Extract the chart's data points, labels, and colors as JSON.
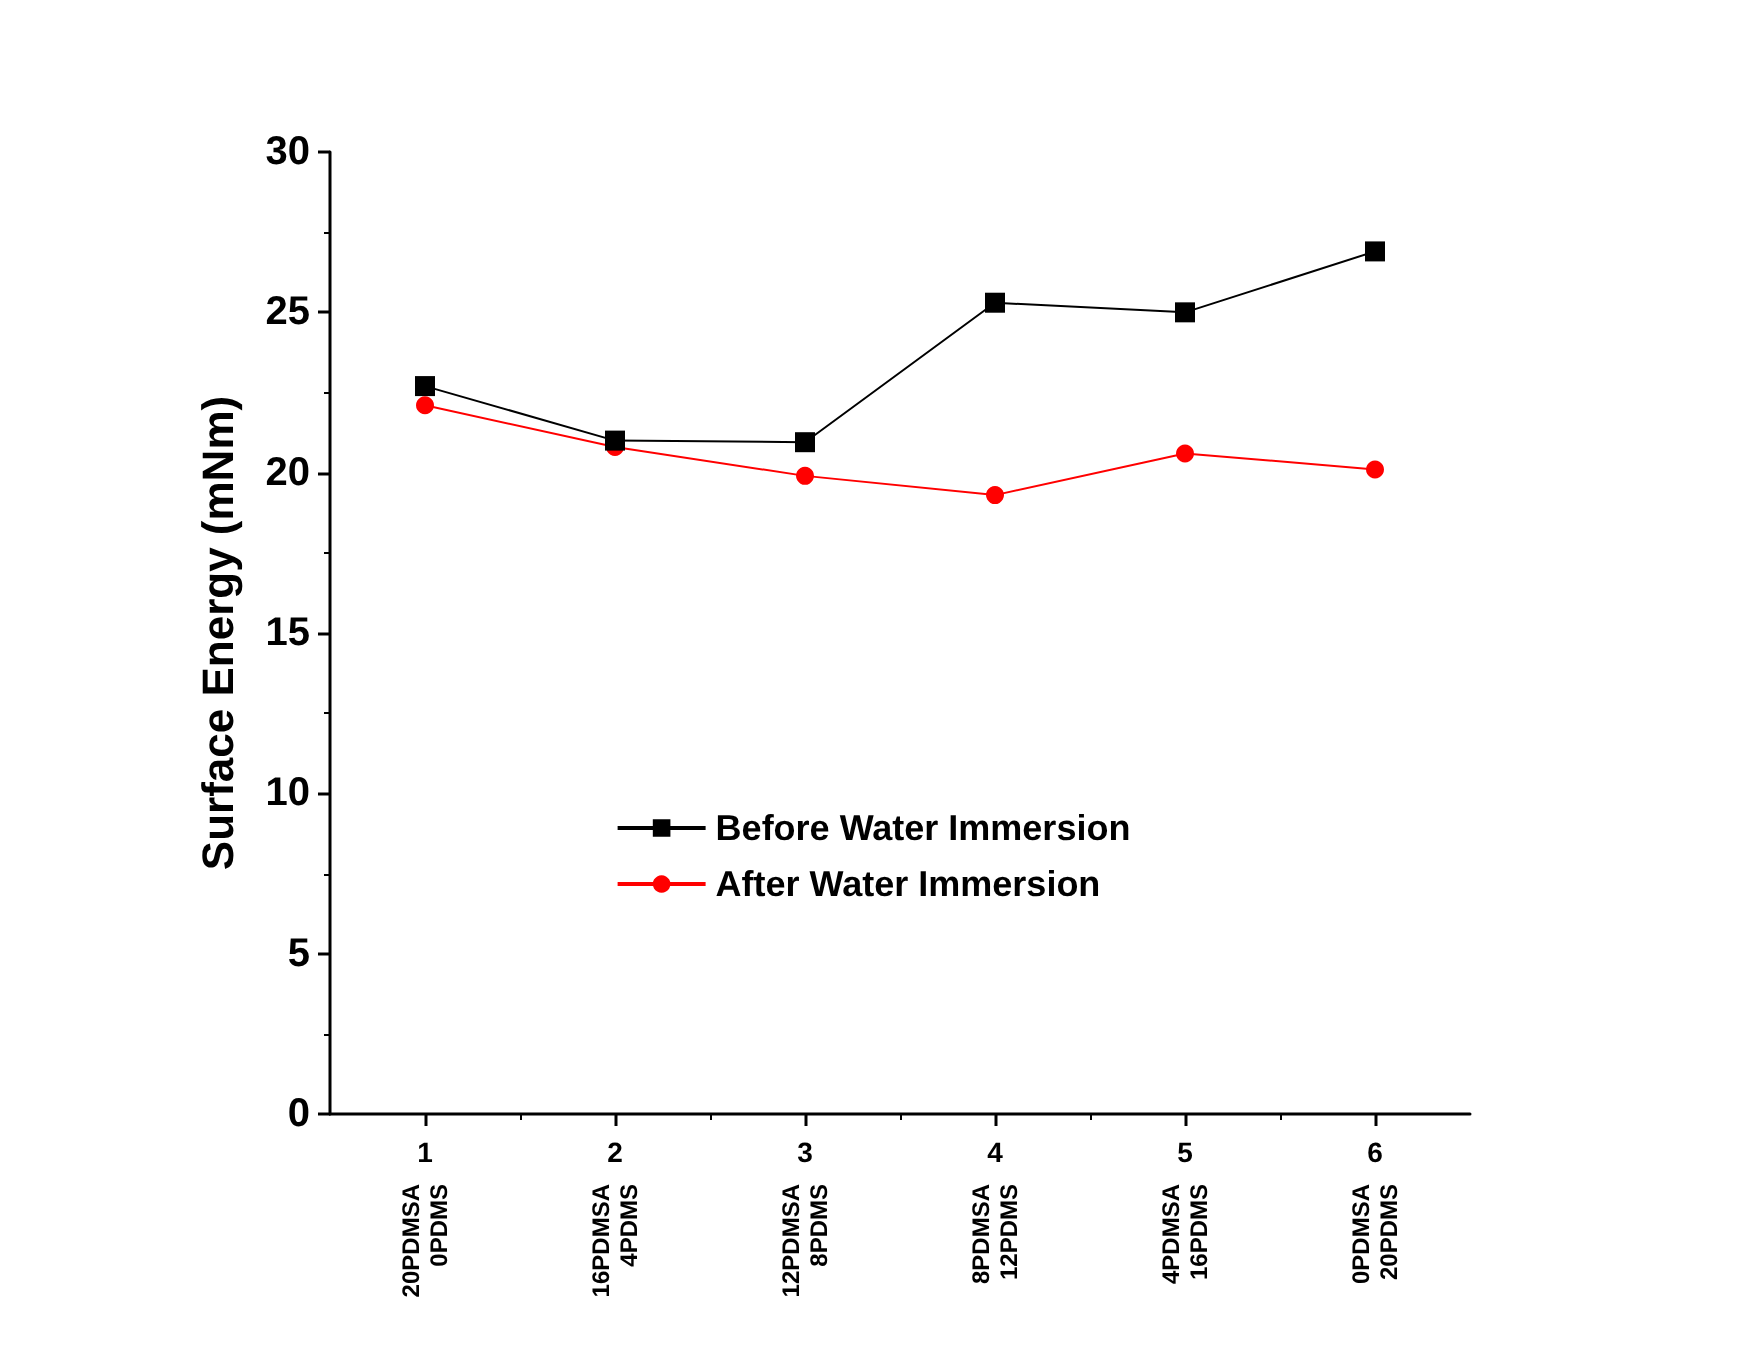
{
  "chart_data": {
    "type": "line",
    "ylabel": "Surface Energy (mNm)",
    "x": [
      1,
      2,
      3,
      4,
      5,
      6
    ],
    "xlim": [
      0.5,
      6.5
    ],
    "xticks": [
      1,
      2,
      3,
      4,
      5,
      6
    ],
    "ylim": [
      0,
      30
    ],
    "yticks": [
      0,
      5,
      10,
      15,
      20,
      25,
      30
    ],
    "series": [
      {
        "name": "Before Water Immersion",
        "color": "#000000",
        "marker": "square",
        "values": [
          22.7,
          21.0,
          20.95,
          25.3,
          25.0,
          26.9
        ]
      },
      {
        "name": "After Water Immersion",
        "color": "#ff0000",
        "marker": "circle",
        "values": [
          22.1,
          20.8,
          19.9,
          19.3,
          20.6,
          20.1
        ]
      }
    ],
    "annotations": [
      "20PDMSA\n0PDMS",
      "16PDMSA\n4PDMS",
      "12PDMSA\n8PDMS",
      "8PDMSA\n12PDMS",
      "4PDMSA\n16PDMS",
      "0PDMSA\n20PDMS"
    ],
    "grid": false,
    "legend": "center",
    "line_style": "solid"
  }
}
